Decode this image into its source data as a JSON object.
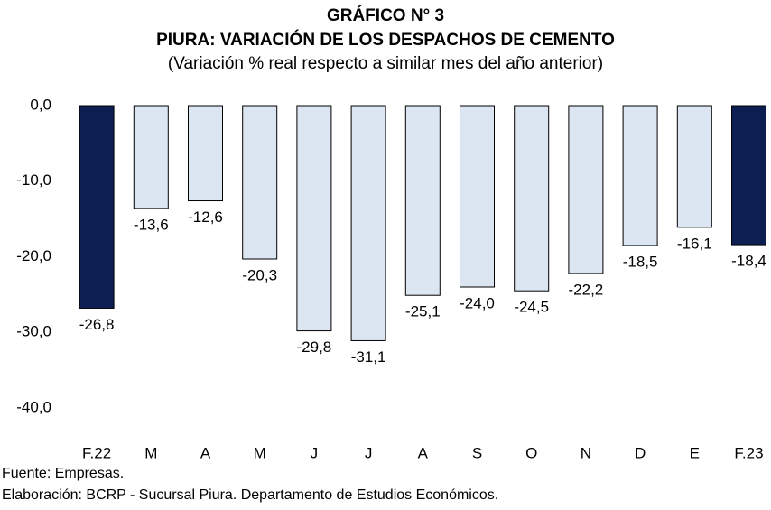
{
  "chart_data": {
    "type": "bar",
    "title": "GRÁFICO N° 3",
    "subtitle": "PIURA: VARIACIÓN DE LOS DESPACHOS DE CEMENTO",
    "subtitle2": "(Variación % real respecto a similar mes del año anterior)",
    "categories": [
      "F.22",
      "M",
      "A",
      "M",
      "J",
      "J",
      "A",
      "S",
      "O",
      "N",
      "D",
      "E",
      "F.23"
    ],
    "values": [
      -26.8,
      -13.6,
      -12.6,
      -20.3,
      -29.8,
      -31.1,
      -25.1,
      -24.0,
      -24.5,
      -22.2,
      -18.5,
      -16.1,
      -18.4
    ],
    "value_labels": [
      "-26,8",
      "-13,6",
      "-12,6",
      "-20,3",
      "-29,8",
      "-31,1",
      "-25,1",
      "-24,0",
      "-24,5",
      "-22,2",
      "-18,5",
      "-16,1",
      "-18,4"
    ],
    "colors": [
      "#0d1f52",
      "#dce6f2",
      "#dce6f2",
      "#dce6f2",
      "#dce6f2",
      "#dce6f2",
      "#dce6f2",
      "#dce6f2",
      "#dce6f2",
      "#dce6f2",
      "#dce6f2",
      "#dce6f2",
      "#0d1f52"
    ],
    "ylim": [
      -40,
      0
    ],
    "yticks": [
      {
        "value": 0,
        "label": "0,0"
      },
      {
        "value": -10,
        "label": "-10,0"
      },
      {
        "value": -20,
        "label": "-20,0"
      },
      {
        "value": -30,
        "label": "-30,0"
      },
      {
        "value": -40,
        "label": "-40,0"
      }
    ],
    "grid": false,
    "source": "Fuente: Empresas.",
    "note": "Elaboración: BCRP - Sucursal Piura. Departamento de Estudios Económicos."
  }
}
